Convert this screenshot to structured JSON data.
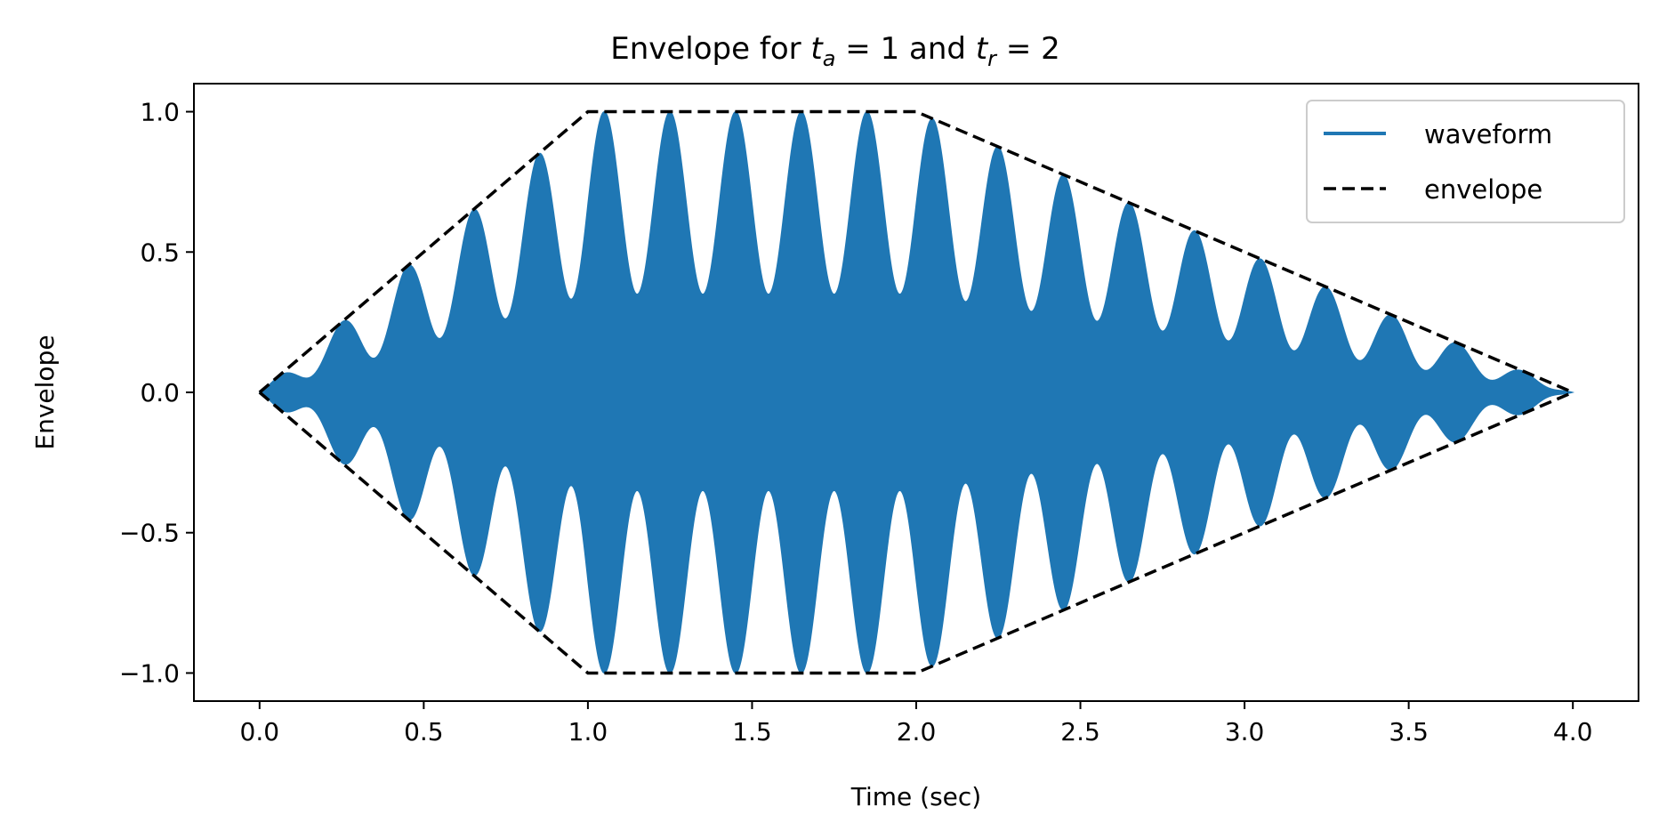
{
  "chart_data": {
    "type": "line",
    "title": {
      "prefix": "Envelope for ",
      "var1": "t",
      "sub1": "a",
      "eq1": " = 1",
      "and": " and ",
      "var2": "t",
      "sub2": "r",
      "eq2": " = 2"
    },
    "xlabel": "Time (sec)",
    "ylabel": "Envelope",
    "xlim": [
      -0.2,
      4.2
    ],
    "ylim": [
      -1.1,
      1.1
    ],
    "xticks": [
      0.0,
      0.5,
      1.0,
      1.5,
      2.0,
      2.5,
      3.0,
      3.5,
      4.0
    ],
    "xtick_labels": [
      "0.0",
      "0.5",
      "1.0",
      "1.5",
      "2.0",
      "2.5",
      "3.0",
      "3.5",
      "4.0"
    ],
    "yticks": [
      -1.0,
      -0.5,
      0.0,
      0.5,
      1.0
    ],
    "ytick_labels": [
      "−1.0",
      "−0.5",
      "0.0",
      "0.5",
      "1.0"
    ],
    "legend_position": "top-right",
    "series": [
      {
        "name": "waveform",
        "style": "solid",
        "color": "#1f77b4",
        "beat_period_sec": 0.2,
        "beat_min_ratio": 0.35
      },
      {
        "name": "envelope",
        "style": "dashed",
        "color": "#000000",
        "x": [
          0.0,
          1.0,
          2.0,
          4.0
        ],
        "y": [
          0.0,
          1.0,
          1.0,
          0.0
        ]
      }
    ]
  }
}
